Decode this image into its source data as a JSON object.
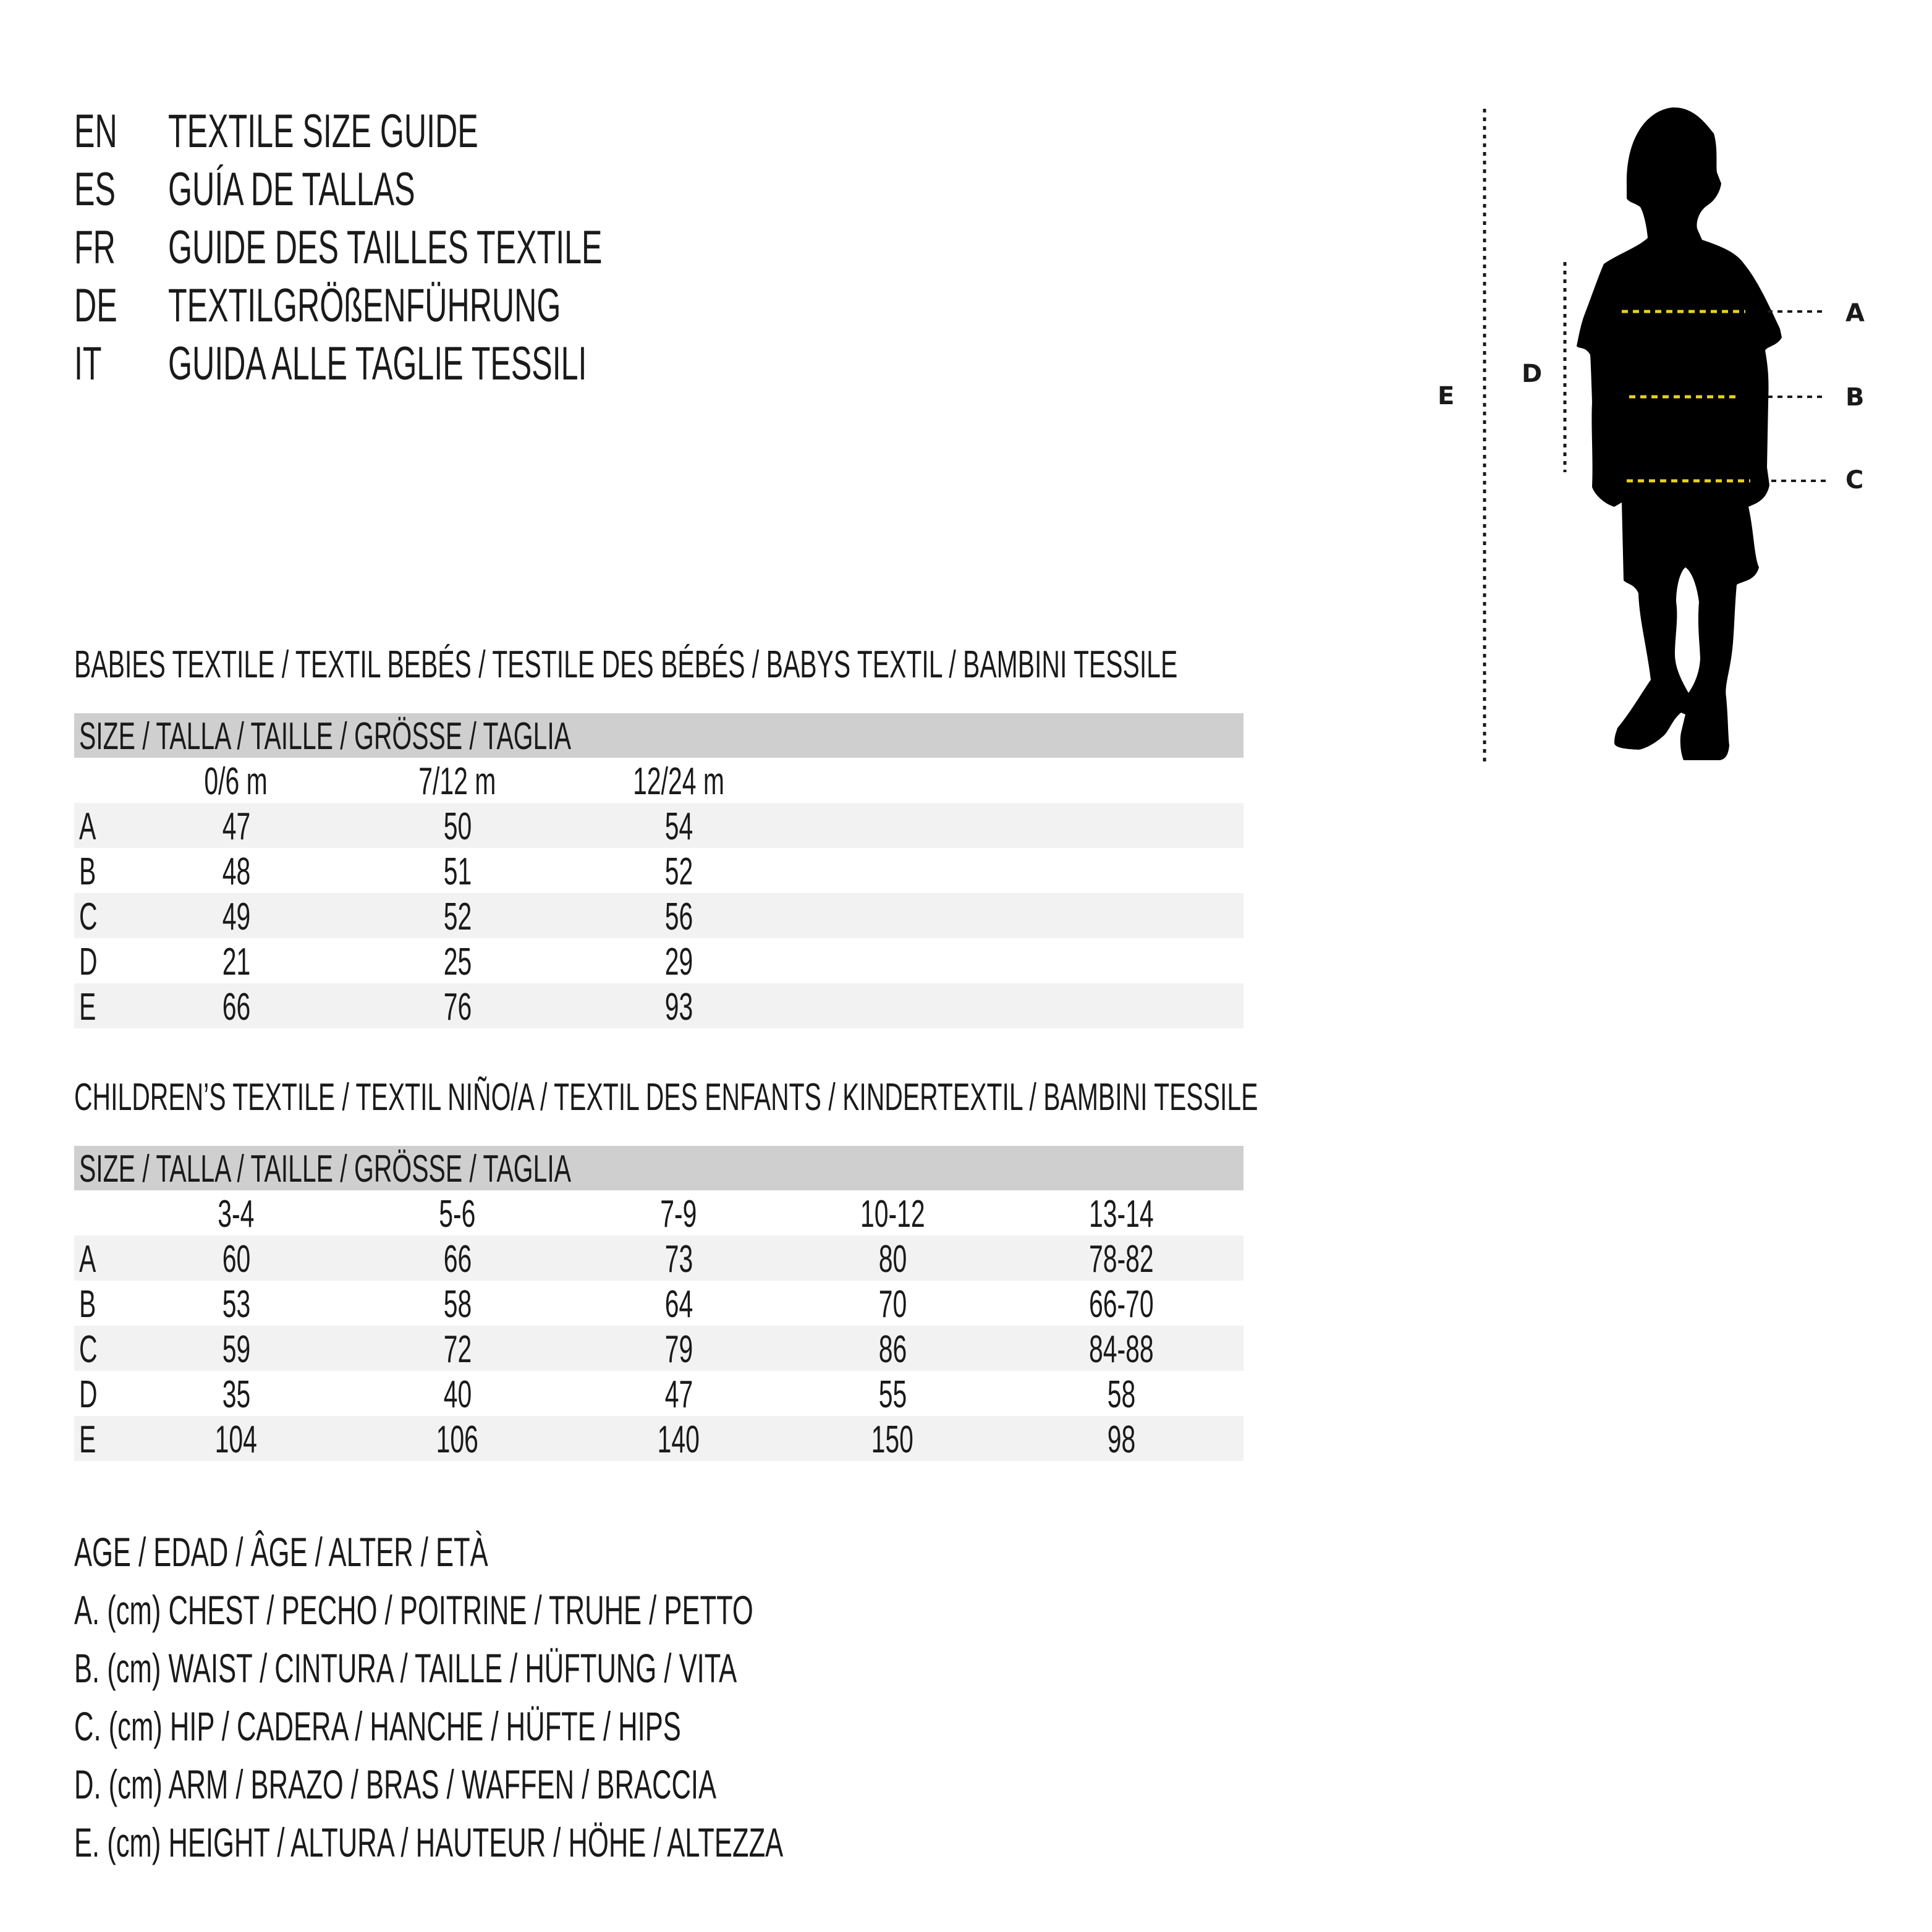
{
  "titles": [
    {
      "code": "EN",
      "text": "TEXTILE SIZE GUIDE"
    },
    {
      "code": "ES",
      "text": "GUÍA DE TALLAS"
    },
    {
      "code": "FR",
      "text": "GUIDE DES TAILLES TEXTILE"
    },
    {
      "code": "DE",
      "text": "TEXTILGRÖßENFÜHRUNG"
    },
    {
      "code": "IT",
      "text": "GUIDA ALLE TAGLIE TESSILI"
    }
  ],
  "babies": {
    "heading": "BABIES TEXTILE / TEXTIL BEBÉS / TESTILE DES BÉBÉS / BABYS TEXTIL / BAMBINI TESSILE",
    "size_label": "SIZE / TALLA / TAILLE / GRÖSSE / TAGLIA",
    "columns": [
      "0/6 m",
      "7/12 m",
      "12/24 m"
    ],
    "rows": [
      {
        "label": "A",
        "values": [
          "47",
          "50",
          "54"
        ]
      },
      {
        "label": "B",
        "values": [
          "48",
          "51",
          "52"
        ]
      },
      {
        "label": "C",
        "values": [
          "49",
          "52",
          "56"
        ]
      },
      {
        "label": "D",
        "values": [
          "21",
          "25",
          "29"
        ]
      },
      {
        "label": "E",
        "values": [
          "66",
          "76",
          "93"
        ]
      }
    ]
  },
  "children": {
    "heading": "CHILDREN’S TEXTILE / TEXTIL NIÑO/A / TEXTIL DES ENFANTS / KINDERTEXTIL / BAMBINI TESSILE",
    "size_label": "SIZE / TALLA / TAILLE / GRÖSSE / TAGLIA",
    "columns": [
      "3-4",
      "5-6",
      "7-9",
      "10-12",
      "13-14"
    ],
    "rows": [
      {
        "label": "A",
        "values": [
          "60",
          "66",
          "73",
          "80",
          "78-82"
        ]
      },
      {
        "label": "B",
        "values": [
          "53",
          "58",
          "64",
          "70",
          "66-70"
        ]
      },
      {
        "label": "C",
        "values": [
          "59",
          "72",
          "79",
          "86",
          "84-88"
        ]
      },
      {
        "label": "D",
        "values": [
          "35",
          "40",
          "47",
          "55",
          "58"
        ]
      },
      {
        "label": "E",
        "values": [
          "104",
          "106",
          "140",
          "150",
          "98"
        ]
      }
    ]
  },
  "legend": [
    "AGE / EDAD / ÂGE / ALTER / ETÀ",
    "A. (cm) CHEST / PECHO / POITRINE / TRUHE / PETTO",
    "B. (cm) WAIST / CINTURA / TAILLE / HÜFTUNG / VITA",
    "C. (cm) HIP / CADERA / HANCHE / HÜFTE / HIPS",
    "D. (cm) ARM / BRAZO / BRAS / WAFFEN / BRACCIA",
    "E. (cm) HEIGHT / ALTURA / HAUTEUR / HÖHE / ALTEZZA"
  ],
  "figure": {
    "labels": {
      "a": "A",
      "b": "B",
      "c": "C",
      "d": "D",
      "e": "E"
    },
    "icon": "child-silhouette",
    "colors": {
      "guide": "#e8d21c",
      "silhouette": "#000000",
      "header_bar": "#cfcfd0",
      "row_stripe": "#f2f2f2"
    }
  }
}
